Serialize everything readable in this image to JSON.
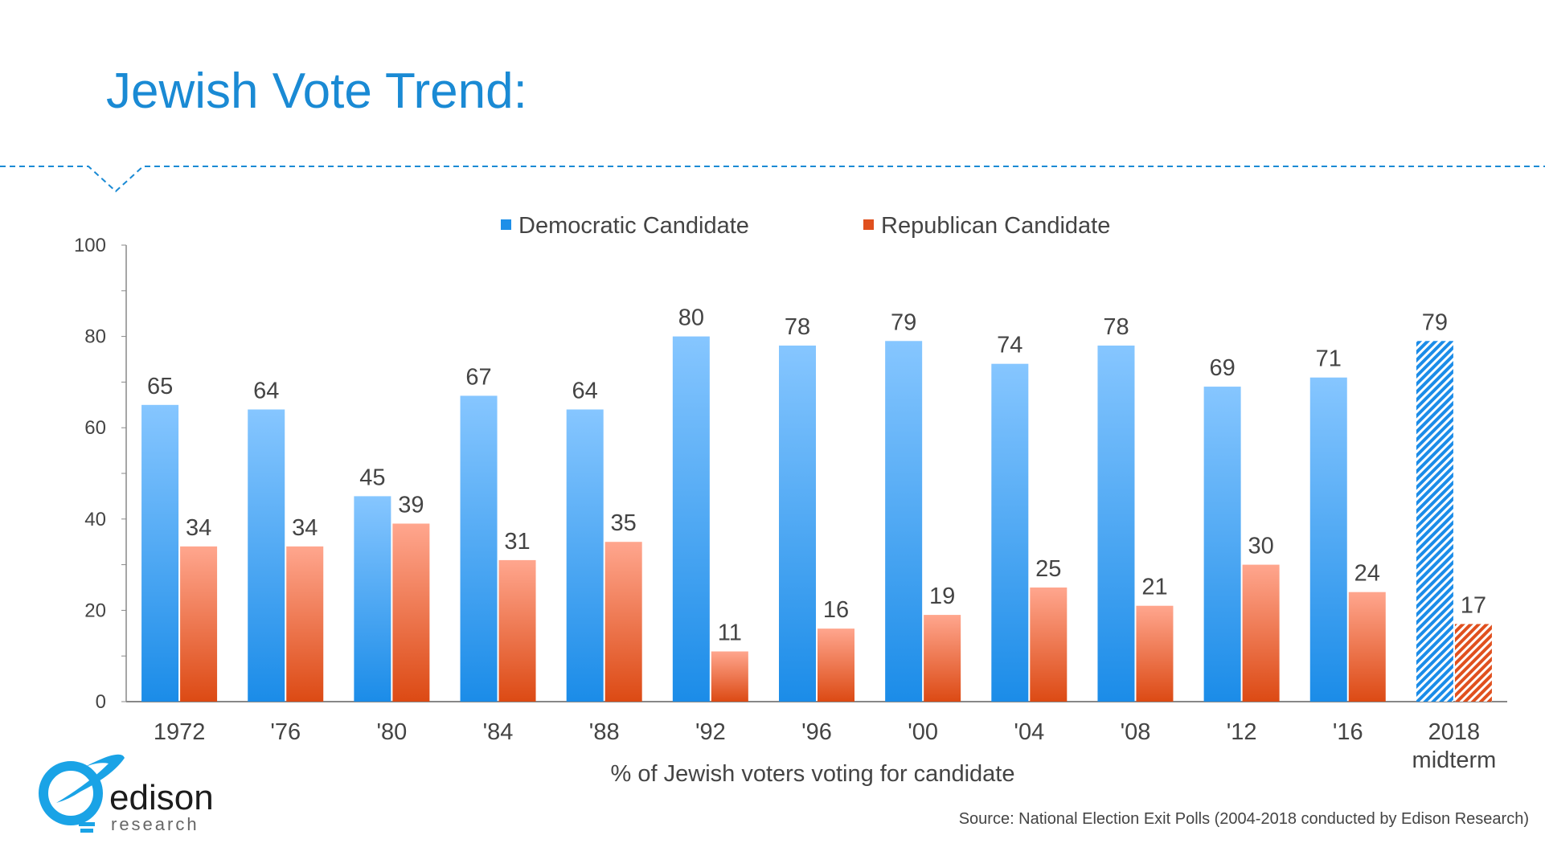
{
  "title": "Jewish Vote Trend:",
  "source": "Source: National Election Exit Polls (2004-2018 conducted by Edison Research)",
  "logo": {
    "text": "edison",
    "subtext": "research"
  },
  "colors": {
    "accent": "#1a8ad4",
    "democratic": "#1e8fe8",
    "republican": "#e0501e"
  },
  "chart_data": {
    "type": "bar",
    "categories": [
      "1972",
      "'76",
      "'80",
      "'84",
      "'88",
      "'92",
      "'96",
      "'00",
      "'04",
      "'08",
      "'12",
      "'16",
      "2018\nmidterm"
    ],
    "series": [
      {
        "name": "Democratic Candidate",
        "values": [
          65,
          64,
          45,
          67,
          64,
          80,
          78,
          79,
          74,
          78,
          69,
          71,
          79
        ]
      },
      {
        "name": "Republican Candidate",
        "values": [
          34,
          34,
          39,
          31,
          35,
          11,
          16,
          19,
          25,
          21,
          30,
          24,
          17
        ]
      }
    ],
    "hatched_categories": [
      "2018\nmidterm"
    ],
    "xlabel": "% of Jewish voters voting for candidate",
    "ylabel": "",
    "ylim": [
      0,
      100
    ],
    "yticks": [
      0,
      20,
      40,
      60,
      80,
      100
    ],
    "grid": false,
    "legend": "top-center",
    "data_labels": true
  }
}
